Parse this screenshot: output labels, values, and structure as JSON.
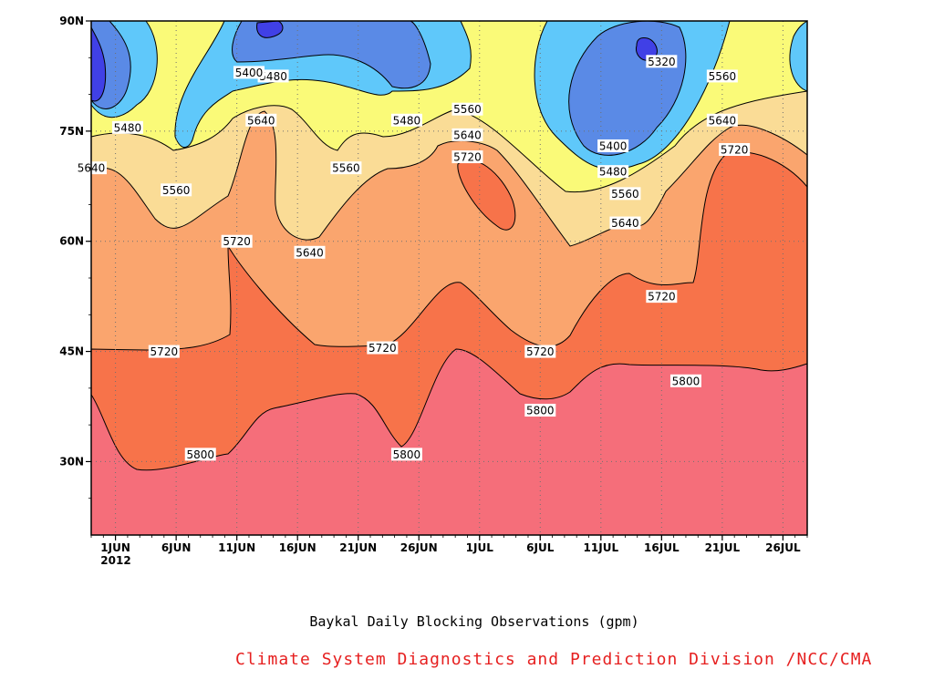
{
  "chart_data": {
    "type": "contour",
    "xlabel": "",
    "ylabel": "",
    "x_ticks": [
      "1JUN",
      "6JUN",
      "11JUN",
      "16JUN",
      "21JUN",
      "26JUN",
      "1JUL",
      "6JUL",
      "11JUL",
      "16JUL",
      "21JUL",
      "26JUL"
    ],
    "x_year": "2012",
    "y_ticks": [
      "90N",
      "75N",
      "60N",
      "45N",
      "30N"
    ],
    "x_range": [
      "2012-05-30",
      "2012-07-28"
    ],
    "y_range": [
      20,
      90
    ],
    "grid": true,
    "levels": [
      5320,
      5400,
      5480,
      5560,
      5640,
      5720,
      5800
    ],
    "fill_colors": {
      "below_5320": "#4040e6",
      "5320_5400": "#5a8ae6",
      "5400_5480": "#5fc8fa",
      "5480_5560": "#fafa78",
      "5560_5640": "#fadc96",
      "5640_5720": "#faa56e",
      "5720_5800": "#f7734a",
      "above_5800": "#f56e7a"
    },
    "contour_labels": [
      {
        "value": "5800",
        "date": "2012-06-08",
        "lat": 31
      },
      {
        "value": "5800",
        "date": "2012-06-25",
        "lat": 31
      },
      {
        "value": "5800",
        "date": "2012-07-06",
        "lat": 37
      },
      {
        "value": "5800",
        "date": "2012-07-18",
        "lat": 41
      },
      {
        "value": "5720",
        "date": "2012-06-05",
        "lat": 45
      },
      {
        "value": "5720",
        "date": "2012-06-23",
        "lat": 45.5
      },
      {
        "value": "5720",
        "date": "2012-07-06",
        "lat": 45
      },
      {
        "value": "5720",
        "date": "2012-07-16",
        "lat": 52.5
      },
      {
        "value": "5720",
        "date": "2012-07-22",
        "lat": 72.5
      },
      {
        "value": "5720",
        "date": "2012-06-11",
        "lat": 60
      },
      {
        "value": "5720",
        "date": "2012-06-30",
        "lat": 71.5
      },
      {
        "value": "5640",
        "date": "2012-05-30",
        "lat": 70
      },
      {
        "value": "5640",
        "date": "2012-06-13",
        "lat": 76.5
      },
      {
        "value": "5640",
        "date": "2012-06-17",
        "lat": 58.5
      },
      {
        "value": "5640",
        "date": "2012-06-30",
        "lat": 74.5
      },
      {
        "value": "5640",
        "date": "2012-07-13",
        "lat": 62.5
      },
      {
        "value": "5640",
        "date": "2012-07-21",
        "lat": 76.5
      },
      {
        "value": "5560",
        "date": "2012-06-06",
        "lat": 67
      },
      {
        "value": "5560",
        "date": "2012-06-20",
        "lat": 70
      },
      {
        "value": "5560",
        "date": "2012-06-30",
        "lat": 78
      },
      {
        "value": "5560",
        "date": "2012-07-13",
        "lat": 66.5
      },
      {
        "value": "5560",
        "date": "2012-07-21",
        "lat": 82.5
      },
      {
        "value": "5480",
        "date": "2012-06-02",
        "lat": 75.5
      },
      {
        "value": "5480",
        "date": "2012-06-14",
        "lat": 82.5
      },
      {
        "value": "5480",
        "date": "2012-06-25",
        "lat": 76.5
      },
      {
        "value": "5480",
        "date": "2012-07-12",
        "lat": 69.5
      },
      {
        "value": "5400",
        "date": "2012-06-12",
        "lat": 83
      },
      {
        "value": "5400",
        "date": "2012-07-12",
        "lat": 73
      },
      {
        "value": "5320",
        "date": "2012-07-16",
        "lat": 84.5
      }
    ]
  },
  "caption": "Baykal Daily Blocking Observations (gpm)",
  "credit": {
    "text": "Climate System Diagnostics and Prediction Division /NCC/CMA",
    "color": "#e62020"
  },
  "frame_color": "#000000",
  "grid_color": "#707070"
}
